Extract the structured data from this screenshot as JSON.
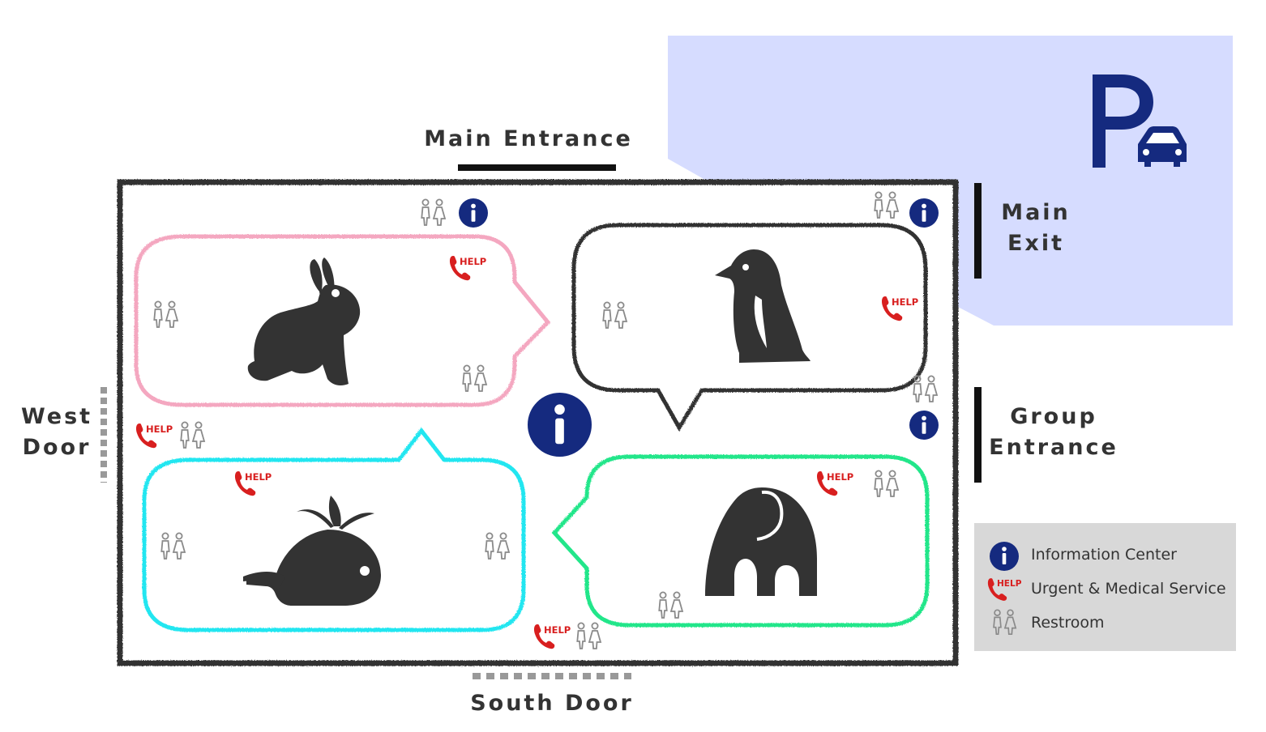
{
  "map": {
    "labels": {
      "main_entrance": "Main Entrance",
      "main_exit_line1": "Main",
      "main_exit_line2": "Exit",
      "group_entrance_line1": "Group",
      "group_entrance_line2": "Entrance",
      "west_door_line1": "West",
      "west_door_line2": "Door",
      "south_door": "South Door"
    },
    "parking_sign": "P",
    "help_text": "HELP",
    "info_text": "i",
    "zones": [
      {
        "animal": "rabbit",
        "color": "#f4a7c0"
      },
      {
        "animal": "penguin",
        "color": "#333333"
      },
      {
        "animal": "whale",
        "color": "#22e6f0"
      },
      {
        "animal": "elephant",
        "color": "#22e68a"
      }
    ],
    "colors": {
      "parking_area": "#d6dcff",
      "navy": "#152a7f",
      "help_red": "#d81f1f",
      "restroom_gray": "#8a8a8a",
      "boundary": "#333333"
    }
  },
  "legend": {
    "items": [
      {
        "icon": "info-icon",
        "label": "Information Center"
      },
      {
        "icon": "help-phone-icon",
        "label": "Urgent & Medical Service"
      },
      {
        "icon": "restroom-icon",
        "label": "Restroom"
      }
    ]
  }
}
